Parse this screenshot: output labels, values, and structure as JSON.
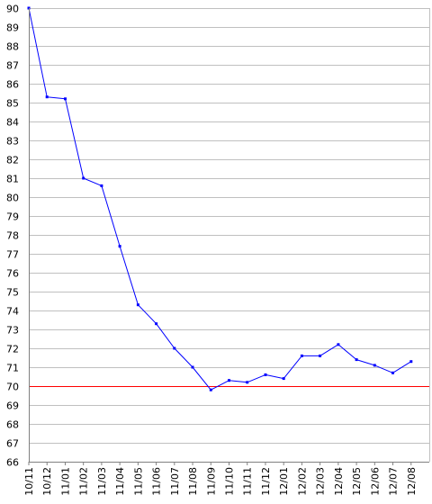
{
  "chart_data": {
    "type": "line",
    "title": "",
    "xlabel": "",
    "ylabel": "",
    "ylim": [
      66,
      90
    ],
    "yticks": [
      66,
      67,
      68,
      69,
      70,
      71,
      72,
      73,
      74,
      75,
      76,
      77,
      78,
      79,
      80,
      81,
      82,
      83,
      84,
      85,
      86,
      87,
      88,
      89,
      90
    ],
    "xlim": [
      "10/11",
      "12/09"
    ],
    "xtick_labels": [
      "10/11",
      "10/12",
      "11/01",
      "11/02",
      "11/03",
      "11/04",
      "11/05",
      "11/06",
      "11/07",
      "11/08",
      "11/09",
      "11/10",
      "11/11",
      "11/12",
      "12/01",
      "12/02",
      "12/03",
      "12/04",
      "12/05",
      "12/06",
      "12/07",
      "12/08"
    ],
    "grid": true,
    "legend": "none",
    "reference_line": {
      "y": 70,
      "color": "#ff0000"
    },
    "series": [
      {
        "color": "#0000ff",
        "x": [
          "10/11",
          "10/12",
          "11/01",
          "11/02",
          "11/03",
          "11/04",
          "11/05",
          "11/06",
          "11/07",
          "11/08",
          "11/09",
          "11/10",
          "11/11",
          "11/12",
          "12/01",
          "12/02",
          "12/03",
          "12/04",
          "12/05",
          "12/06",
          "12/07",
          "12/08"
        ],
        "values": [
          90,
          85.3,
          85.2,
          81.0,
          80.6,
          77.4,
          74.3,
          73.3,
          72.0,
          71.0,
          69.8,
          70.3,
          70.2,
          70.6,
          70.4,
          71.6,
          71.6,
          72.2,
          71.4,
          71.1,
          70.7,
          71.3
        ]
      }
    ]
  }
}
